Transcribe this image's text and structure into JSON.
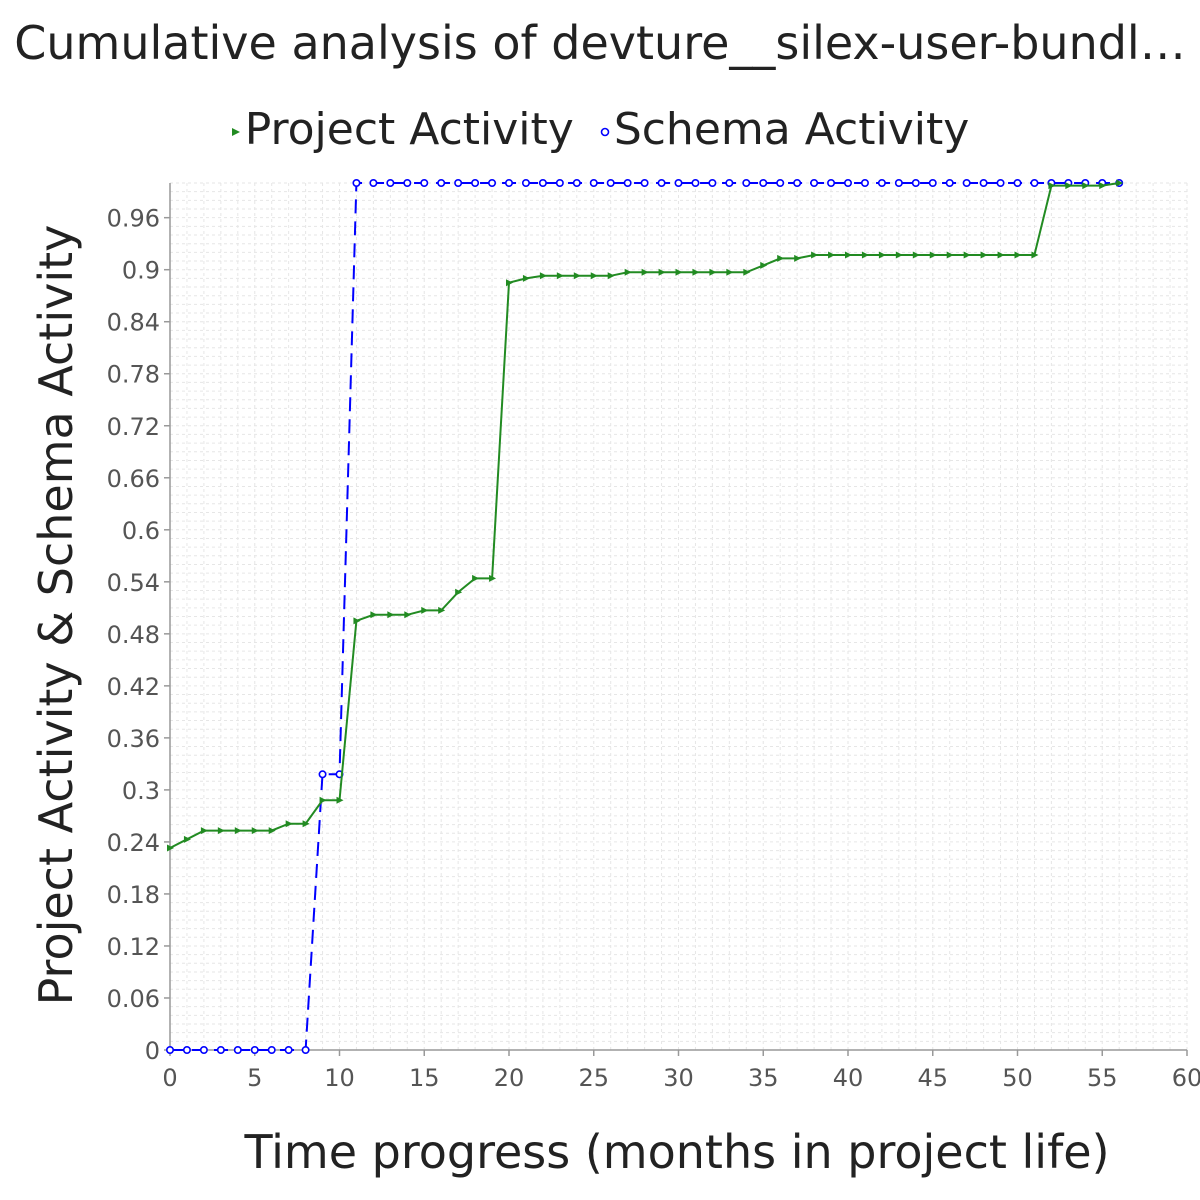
{
  "chart_data": {
    "type": "line",
    "title": "Cumulative analysis of devture__silex-user-bundl…",
    "xlabel": "Time progress (months in project life)",
    "ylabel": "Project Activity & Schema Activity",
    "xlim": [
      0,
      60
    ],
    "ylim": [
      0,
      1
    ],
    "x_ticks": [
      "0",
      "5",
      "10",
      "15",
      "20",
      "25",
      "30",
      "35",
      "40",
      "45",
      "50",
      "55",
      "60"
    ],
    "y_ticks": [
      "0",
      "0.06",
      "0.12",
      "0.18",
      "0.24",
      "0.3",
      "0.36",
      "0.42",
      "0.48",
      "0.54",
      "0.6",
      "0.66",
      "0.72",
      "0.78",
      "0.84",
      "0.9",
      "0.96"
    ],
    "grid": true,
    "legend_position": "top",
    "series": [
      {
        "name": "Project Activity",
        "color": "#228B22",
        "marker": "triangle-right",
        "line_style": "solid",
        "x": [
          0,
          1,
          2,
          3,
          4,
          5,
          6,
          7,
          8,
          9,
          10,
          11,
          12,
          13,
          14,
          15,
          16,
          17,
          18,
          19,
          20,
          21,
          22,
          23,
          24,
          25,
          26,
          27,
          28,
          29,
          30,
          31,
          32,
          33,
          34,
          35,
          36,
          37,
          38,
          39,
          40,
          41,
          42,
          43,
          44,
          45,
          46,
          47,
          48,
          49,
          50,
          51,
          52,
          53,
          54,
          55,
          56
        ],
        "values": [
          0.233,
          0.243,
          0.253,
          0.253,
          0.253,
          0.253,
          0.253,
          0.261,
          0.261,
          0.288,
          0.288,
          0.495,
          0.502,
          0.502,
          0.502,
          0.507,
          0.507,
          0.528,
          0.544,
          0.544,
          0.885,
          0.89,
          0.893,
          0.893,
          0.893,
          0.893,
          0.893,
          0.897,
          0.897,
          0.897,
          0.897,
          0.897,
          0.897,
          0.897,
          0.897,
          0.905,
          0.913,
          0.913,
          0.917,
          0.917,
          0.917,
          0.917,
          0.917,
          0.917,
          0.917,
          0.917,
          0.917,
          0.917,
          0.917,
          0.917,
          0.917,
          0.917,
          0.997,
          0.997,
          0.997,
          0.997,
          1.0
        ]
      },
      {
        "name": "Schema Activity",
        "color": "#0000FF",
        "marker": "circle",
        "line_style": "dashed",
        "x": [
          0,
          1,
          2,
          3,
          4,
          5,
          6,
          7,
          8,
          9,
          10,
          11,
          12,
          13,
          14,
          15,
          16,
          17,
          18,
          19,
          20,
          21,
          22,
          23,
          24,
          25,
          26,
          27,
          28,
          29,
          30,
          31,
          32,
          33,
          34,
          35,
          36,
          37,
          38,
          39,
          40,
          41,
          42,
          43,
          44,
          45,
          46,
          47,
          48,
          49,
          50,
          51,
          52,
          53,
          54,
          55,
          56
        ],
        "values": [
          0,
          0,
          0,
          0,
          0,
          0,
          0,
          0,
          0,
          0.318,
          0.318,
          1,
          1,
          1,
          1,
          1,
          1,
          1,
          1,
          1,
          1,
          1,
          1,
          1,
          1,
          1,
          1,
          1,
          1,
          1,
          1,
          1,
          1,
          1,
          1,
          1,
          1,
          1,
          1,
          1,
          1,
          1,
          1,
          1,
          1,
          1,
          1,
          1,
          1,
          1,
          1,
          1,
          1,
          1,
          1,
          1,
          1
        ]
      }
    ]
  }
}
